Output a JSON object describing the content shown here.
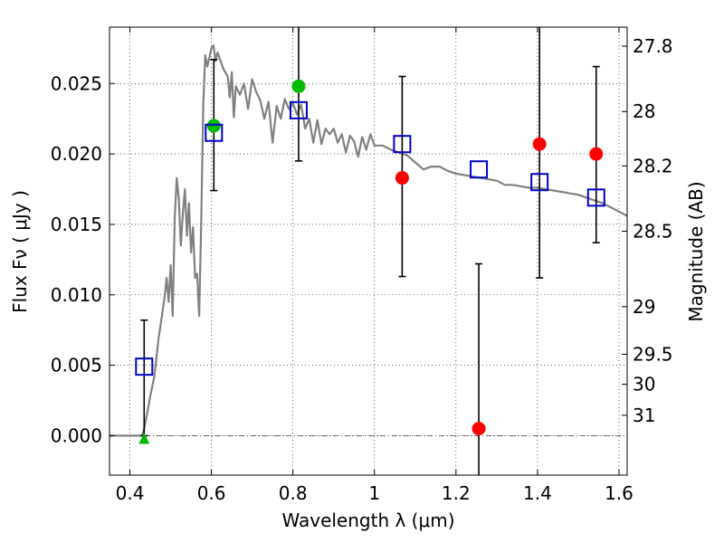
{
  "chart_data": {
    "type": "scatter",
    "xlabel": "Wavelength  λ (μm)",
    "ylabel": "Flux  Fν  ( μJy )",
    "y2label": "Magnitude (AB)",
    "xlim": [
      0.35,
      1.62
    ],
    "ylim": [
      -0.0028,
      0.029
    ],
    "x_ticks": [
      {
        "value": 0.4,
        "label": "0.4"
      },
      {
        "value": 0.6,
        "label": "0.6"
      },
      {
        "value": 0.8,
        "label": "0.8"
      },
      {
        "value": 1.0,
        "label": "1"
      },
      {
        "value": 1.2,
        "label": "1.2"
      },
      {
        "value": 1.4,
        "label": "1.4"
      },
      {
        "value": 1.6,
        "label": "1.6"
      }
    ],
    "y_ticks": [
      {
        "value": 0.0,
        "label": "0.000"
      },
      {
        "value": 0.005,
        "label": "0.005"
      },
      {
        "value": 0.01,
        "label": "0.010"
      },
      {
        "value": 0.015,
        "label": "0.015"
      },
      {
        "value": 0.02,
        "label": "0.020"
      },
      {
        "value": 0.025,
        "label": "0.025"
      }
    ],
    "y2_ticks": [
      {
        "flux": 0.02765,
        "label": "27.8"
      },
      {
        "flux": 0.02301,
        "label": "28"
      },
      {
        "flux": 0.01915,
        "label": "28.2"
      },
      {
        "flux": 0.01451,
        "label": "28.5"
      },
      {
        "flux": 0.00916,
        "label": "29"
      },
      {
        "flux": 0.00578,
        "label": "29.5"
      },
      {
        "flux": 0.00365,
        "label": "30"
      },
      {
        "flux": 0.00145,
        "label": "31"
      }
    ],
    "grid": true,
    "grid_style": "dotted",
    "colors": {
      "sed_line": "#808080",
      "model_marker": "#0000cc",
      "detection": "#00bb00",
      "nondetection": "#ff0000",
      "errorbar": "#000000"
    },
    "sed_curve": {
      "x": [
        0.35,
        0.43,
        0.435,
        0.44,
        0.445,
        0.45,
        0.455,
        0.46,
        0.465,
        0.47,
        0.475,
        0.48,
        0.485,
        0.49,
        0.495,
        0.5,
        0.505,
        0.51,
        0.515,
        0.52,
        0.525,
        0.53,
        0.535,
        0.54,
        0.545,
        0.55,
        0.555,
        0.56,
        0.565,
        0.57,
        0.575,
        0.58,
        0.585,
        0.59,
        0.6,
        0.605,
        0.61,
        0.615,
        0.62,
        0.63,
        0.64,
        0.645,
        0.65,
        0.655,
        0.66,
        0.67,
        0.68,
        0.69,
        0.7,
        0.71,
        0.72,
        0.73,
        0.74,
        0.75,
        0.76,
        0.77,
        0.78,
        0.79,
        0.8,
        0.81,
        0.82,
        0.83,
        0.84,
        0.85,
        0.86,
        0.87,
        0.88,
        0.89,
        0.9,
        0.91,
        0.92,
        0.93,
        0.94,
        0.95,
        0.96,
        0.97,
        0.98,
        0.99,
        1.0,
        1.02,
        1.04,
        1.06,
        1.08,
        1.1,
        1.12,
        1.14,
        1.16,
        1.18,
        1.2,
        1.22,
        1.24,
        1.26,
        1.28,
        1.3,
        1.32,
        1.34,
        1.36,
        1.38,
        1.4,
        1.42,
        1.44,
        1.46,
        1.48,
        1.5,
        1.52,
        1.54,
        1.56,
        1.58,
        1.6,
        1.62
      ],
      "y": [
        0.0,
        0.0,
        0.0005,
        0.0012,
        0.002,
        0.0028,
        0.0035,
        0.0042,
        0.0055,
        0.0068,
        0.0078,
        0.0088,
        0.0098,
        0.0112,
        0.0095,
        0.0121,
        0.0085,
        0.0155,
        0.0183,
        0.0168,
        0.0135,
        0.0158,
        0.0175,
        0.0142,
        0.0165,
        0.013,
        0.0148,
        0.0112,
        0.0115,
        0.0085,
        0.015,
        0.0235,
        0.027,
        0.0262,
        0.0275,
        0.0277,
        0.0266,
        0.0272,
        0.0268,
        0.026,
        0.0255,
        0.024,
        0.0258,
        0.0226,
        0.0248,
        0.0242,
        0.025,
        0.0232,
        0.0253,
        0.0244,
        0.0238,
        0.0225,
        0.0237,
        0.0208,
        0.0234,
        0.0225,
        0.0239,
        0.0232,
        0.0236,
        0.0228,
        0.0235,
        0.0218,
        0.0225,
        0.0208,
        0.0224,
        0.0207,
        0.0218,
        0.0214,
        0.0218,
        0.0208,
        0.0214,
        0.0201,
        0.0213,
        0.0209,
        0.0198,
        0.0212,
        0.0203,
        0.0214,
        0.0206,
        0.0206,
        0.0203,
        0.0201,
        0.0199,
        0.0194,
        0.0189,
        0.0191,
        0.0191,
        0.0188,
        0.0186,
        0.0185,
        0.0184,
        0.0183,
        0.0182,
        0.0181,
        0.0178,
        0.0178,
        0.0177,
        0.0176,
        0.0176,
        0.0175,
        0.0174,
        0.0173,
        0.0172,
        0.0171,
        0.0169,
        0.0167,
        0.0165,
        0.0162,
        0.0159,
        0.0156
      ]
    },
    "model_points": [
      {
        "x": 0.435,
        "y": 0.0049
      },
      {
        "x": 0.606,
        "y": 0.0215
      },
      {
        "x": 0.814,
        "y": 0.0231
      },
      {
        "x": 1.068,
        "y": 0.0207
      },
      {
        "x": 1.256,
        "y": 0.0189
      },
      {
        "x": 1.405,
        "y": 0.018
      },
      {
        "x": 1.544,
        "y": 0.0169
      }
    ],
    "detections": [
      {
        "x": 0.606,
        "y": 0.022
      },
      {
        "x": 0.814,
        "y": 0.0248
      }
    ],
    "nondetections": [
      {
        "x": 1.068,
        "y": 0.0183
      },
      {
        "x": 1.256,
        "y": 0.0005
      },
      {
        "x": 1.405,
        "y": 0.0207
      },
      {
        "x": 1.544,
        "y": 0.02
      }
    ],
    "upper_limit_points": [
      {
        "x": 0.435,
        "y": -0.0002
      }
    ],
    "error_bars": [
      {
        "x": 0.435,
        "low": 0.0,
        "high": 0.0082
      },
      {
        "x": 0.606,
        "low": 0.0174,
        "high": 0.0267
      },
      {
        "x": 0.814,
        "low": 0.0195,
        "high": 0.03
      },
      {
        "x": 1.068,
        "low": 0.0113,
        "high": 0.0255
      },
      {
        "x": 1.256,
        "low": -0.003,
        "high": 0.0122
      },
      {
        "x": 1.405,
        "low": 0.0112,
        "high": 0.03
      },
      {
        "x": 1.544,
        "low": 0.0137,
        "high": 0.0262
      }
    ]
  }
}
